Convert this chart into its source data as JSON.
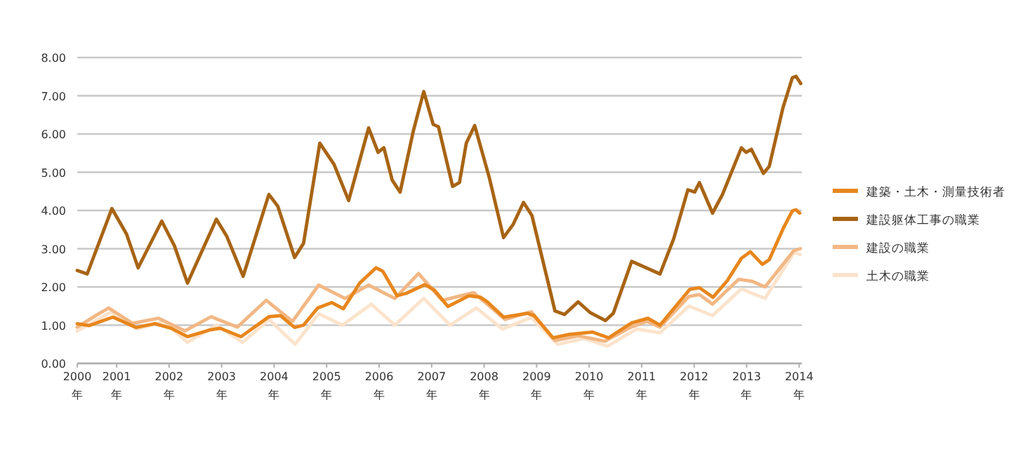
{
  "chart_data": {
    "type": "line",
    "xlim": [
      2000.25,
      2014.05
    ],
    "xticks": [
      {
        "value": 2000.25,
        "label": "2000年"
      },
      {
        "value": 2001,
        "label": "2001年"
      },
      {
        "value": 2002,
        "label": "2002年"
      },
      {
        "value": 2003,
        "label": "2003年"
      },
      {
        "value": 2004,
        "label": "2004年"
      },
      {
        "value": 2005,
        "label": "2005年"
      },
      {
        "value": 2006,
        "label": "2006年"
      },
      {
        "value": 2007,
        "label": "2007年"
      },
      {
        "value": 2008,
        "label": "2008年"
      },
      {
        "value": 2009,
        "label": "2009年"
      },
      {
        "value": 2010,
        "label": "2010年"
      },
      {
        "value": 2011,
        "label": "2011年"
      },
      {
        "value": 2012,
        "label": "2012年"
      },
      {
        "value": 2013,
        "label": "2013年"
      },
      {
        "value": 2014,
        "label": "2014年"
      }
    ],
    "ylim": [
      0,
      8
    ],
    "yticks": [
      {
        "value": 0,
        "label": "0.00"
      },
      {
        "value": 1,
        "label": "1.00"
      },
      {
        "value": 2,
        "label": "2.00"
      },
      {
        "value": 3,
        "label": "3.00"
      },
      {
        "value": 4,
        "label": "4.00"
      },
      {
        "value": 5,
        "label": "5.00"
      },
      {
        "value": 6,
        "label": "6.00"
      },
      {
        "value": 7,
        "label": "7.00"
      },
      {
        "value": 8,
        "label": "8.00"
      }
    ],
    "grid": "y",
    "legend": "right",
    "series": [
      {
        "name": "建築・土木・測量技術者",
        "color": "#e8861c",
        "x": [
          2000.25,
          2000.48,
          2000.93,
          2001.37,
          2001.73,
          2002.04,
          2002.35,
          2002.79,
          2002.97,
          2003.37,
          2003.9,
          2004.12,
          2004.39,
          2004.56,
          2004.83,
          2005.1,
          2005.32,
          2005.63,
          2005.94,
          2006.07,
          2006.34,
          2006.51,
          2006.87,
          2007.05,
          2007.31,
          2007.71,
          2007.93,
          2008.06,
          2008.37,
          2008.82,
          2008.95,
          2009.31,
          2009.62,
          2010.06,
          2010.37,
          2010.81,
          2011.12,
          2011.35,
          2011.61,
          2011.92,
          2012.1,
          2012.36,
          2012.63,
          2012.9,
          2013.07,
          2013.3,
          2013.43,
          2013.69,
          2013.87,
          2013.94,
          2014.01
        ],
        "values": [
          1.04,
          0.99,
          1.21,
          0.94,
          1.04,
          0.92,
          0.7,
          0.88,
          0.92,
          0.7,
          1.22,
          1.25,
          0.94,
          1.0,
          1.45,
          1.59,
          1.43,
          2.1,
          2.5,
          2.41,
          1.77,
          1.83,
          2.06,
          1.92,
          1.49,
          1.77,
          1.73,
          1.61,
          1.21,
          1.31,
          1.25,
          0.67,
          0.76,
          0.82,
          0.67,
          1.06,
          1.18,
          1.0,
          1.43,
          1.94,
          1.98,
          1.73,
          2.16,
          2.75,
          2.92,
          2.59,
          2.71,
          3.51,
          3.99,
          4.02,
          3.93
        ]
      },
      {
        "name": "建設躯体工事の職業",
        "color": "#a86414",
        "x": [
          2000.25,
          2000.44,
          2000.91,
          2001.19,
          2001.41,
          2001.86,
          2002.1,
          2002.35,
          2002.9,
          2003.1,
          2003.41,
          2003.9,
          2004.07,
          2004.39,
          2004.56,
          2004.87,
          2005.14,
          2005.42,
          2005.8,
          2005.98,
          2006.09,
          2006.25,
          2006.4,
          2006.65,
          2006.85,
          2007.03,
          2007.13,
          2007.4,
          2007.53,
          2007.66,
          2007.82,
          2008.1,
          2008.37,
          2008.55,
          2008.75,
          2008.91,
          2009.35,
          2009.53,
          2009.79,
          2010.02,
          2010.31,
          2010.46,
          2010.81,
          2011.35,
          2011.61,
          2011.88,
          2012.01,
          2012.1,
          2012.35,
          2012.54,
          2012.9,
          2012.99,
          2013.09,
          2013.32,
          2013.43,
          2013.69,
          2013.87,
          2013.94,
          2014.03
        ],
        "values": [
          2.43,
          2.34,
          4.05,
          3.38,
          2.5,
          3.72,
          3.08,
          2.1,
          3.77,
          3.32,
          2.28,
          4.42,
          4.11,
          2.77,
          3.14,
          5.76,
          5.21,
          4.26,
          6.16,
          5.52,
          5.64,
          4.79,
          4.48,
          6.07,
          7.11,
          6.25,
          6.19,
          4.63,
          4.73,
          5.76,
          6.22,
          4.85,
          3.29,
          3.63,
          4.21,
          3.87,
          1.37,
          1.28,
          1.61,
          1.33,
          1.12,
          1.31,
          2.67,
          2.34,
          3.26,
          4.54,
          4.48,
          4.73,
          3.93,
          4.42,
          5.64,
          5.52,
          5.6,
          4.97,
          5.15,
          6.68,
          7.47,
          7.51,
          7.32
        ]
      },
      {
        "name": "建設の職業",
        "color": "#f2b784",
        "x": [
          2000.25,
          2000.6,
          2000.85,
          2001.3,
          2001.8,
          2002.3,
          2002.8,
          2003.3,
          2003.85,
          2004.35,
          2004.85,
          2005.35,
          2005.8,
          2006.3,
          2006.75,
          2007.2,
          2007.8,
          2008.1,
          2008.4,
          2008.9,
          2009.35,
          2009.8,
          2010.3,
          2010.8,
          2011.1,
          2011.35,
          2011.9,
          2012.1,
          2012.35,
          2012.85,
          2013.1,
          2013.35,
          2013.9,
          2014.02
        ],
        "values": [
          0.95,
          1.25,
          1.45,
          1.05,
          1.18,
          0.85,
          1.22,
          0.95,
          1.65,
          1.1,
          2.05,
          1.7,
          2.05,
          1.7,
          2.35,
          1.65,
          1.85,
          1.5,
          1.15,
          1.35,
          0.6,
          0.72,
          0.58,
          0.95,
          1.1,
          0.95,
          1.75,
          1.8,
          1.55,
          2.2,
          2.15,
          2.0,
          2.95,
          3.0
        ]
      },
      {
        "name": "土木の職業",
        "color": "#fbe3cc",
        "x": [
          2000.25,
          2000.9,
          2001.4,
          2001.9,
          2002.35,
          2002.9,
          2003.4,
          2003.9,
          2004.4,
          2004.85,
          2005.3,
          2005.85,
          2006.3,
          2006.85,
          2007.35,
          2007.85,
          2008.35,
          2008.9,
          2009.4,
          2009.9,
          2010.35,
          2010.9,
          2011.35,
          2011.9,
          2012.35,
          2012.9,
          2013.35,
          2013.9,
          2014.02
        ],
        "values": [
          0.85,
          1.35,
          0.9,
          1.1,
          0.55,
          1.0,
          0.55,
          1.15,
          0.5,
          1.3,
          1.0,
          1.55,
          1.0,
          1.7,
          1.0,
          1.45,
          0.9,
          1.2,
          0.5,
          0.65,
          0.45,
          0.9,
          0.8,
          1.5,
          1.25,
          1.95,
          1.7,
          2.9,
          2.85
        ]
      }
    ]
  }
}
